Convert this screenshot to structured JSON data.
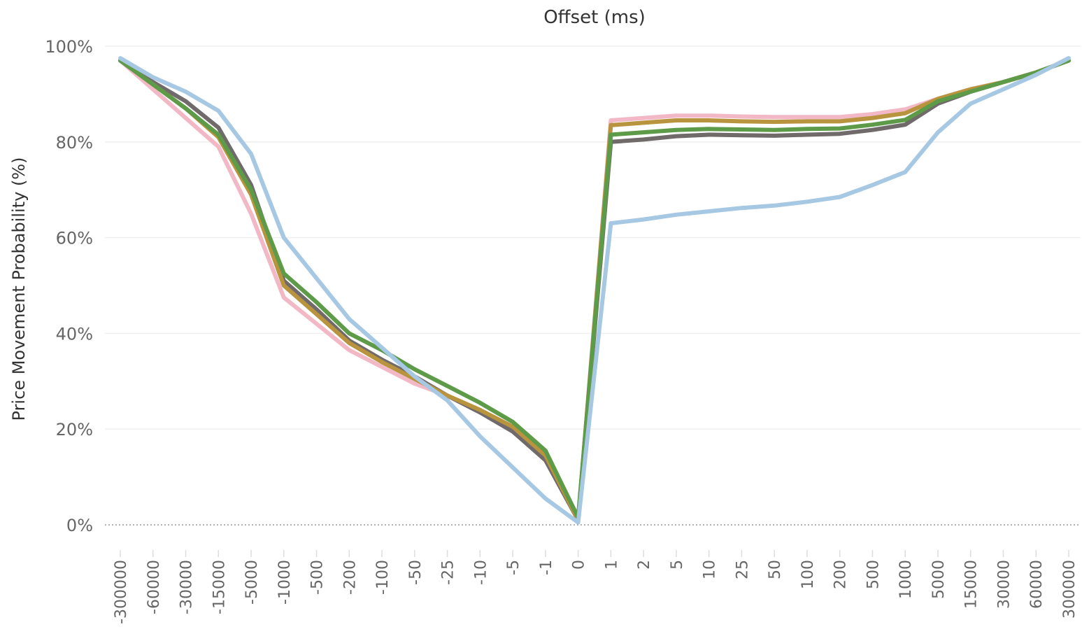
{
  "chart_data": {
    "type": "line",
    "title": "Offset (ms)",
    "xlabel": "",
    "ylabel": "Price Movement Probability (%)",
    "ylim": [
      0,
      100
    ],
    "y_ticks": [
      "0%",
      "20%",
      "40%",
      "60%",
      "80%",
      "100%"
    ],
    "y_tick_values": [
      0,
      20,
      40,
      60,
      80,
      100
    ],
    "grid": true,
    "legend": "none",
    "categories": [
      "-300000",
      "-60000",
      "-30000",
      "-15000",
      "-5000",
      "-1000",
      "-500",
      "-200",
      "-100",
      "-50",
      "-25",
      "-10",
      "-5",
      "-1",
      "0",
      "1",
      "2",
      "5",
      "10",
      "25",
      "50",
      "100",
      "200",
      "500",
      "1000",
      "5000",
      "15000",
      "30000",
      "60000",
      "300000"
    ],
    "series": [
      {
        "color": "#f2b8c6",
        "values": [
          97,
          91,
          85,
          79,
          65,
          47.5,
          42,
          36.5,
          33,
          29.5,
          27,
          23.5,
          20,
          14,
          1,
          84.5,
          85,
          85.5,
          85.5,
          85.3,
          85.2,
          85.2,
          85.2,
          85.8,
          86.8,
          89,
          91,
          92.5,
          94.5,
          97
        ]
      },
      {
        "color": "#706a6a",
        "values": [
          97,
          92.5,
          88.5,
          83,
          71,
          51,
          45,
          38.5,
          34.5,
          31,
          27,
          23.5,
          19.5,
          13.5,
          1,
          80,
          80.5,
          81.2,
          81.5,
          81.4,
          81.3,
          81.5,
          81.7,
          82.5,
          83.6,
          88,
          90.5,
          92.5,
          94.5,
          97
        ]
      },
      {
        "color": "#b9943f",
        "values": [
          97,
          92,
          87,
          81,
          69,
          50,
          44,
          38,
          34,
          30.5,
          27,
          24,
          20.5,
          14.5,
          1,
          83.5,
          84,
          84.5,
          84.5,
          84.3,
          84.2,
          84.3,
          84.3,
          85,
          86,
          89,
          91,
          92.5,
          94.5,
          97
        ]
      },
      {
        "color": "#5e9b49",
        "values": [
          97,
          92,
          87,
          81.5,
          70,
          52.5,
          46.5,
          40,
          36.5,
          32.5,
          29,
          25.5,
          21.5,
          15.5,
          1.5,
          81.5,
          82,
          82.5,
          82.7,
          82.6,
          82.5,
          82.7,
          82.8,
          83.6,
          84.6,
          88.5,
          90.5,
          92.5,
          94.5,
          97
        ]
      },
      {
        "color": "#a6c8e3",
        "values": [
          97.5,
          93.5,
          90.5,
          86.5,
          77.5,
          60,
          51.5,
          43,
          37,
          31,
          26,
          18.5,
          12,
          5.5,
          0.5,
          63,
          63.8,
          64.8,
          65.5,
          66.2,
          66.7,
          67.5,
          68.5,
          71,
          73.7,
          82,
          88,
          91,
          94,
          97.5
        ]
      }
    ]
  }
}
